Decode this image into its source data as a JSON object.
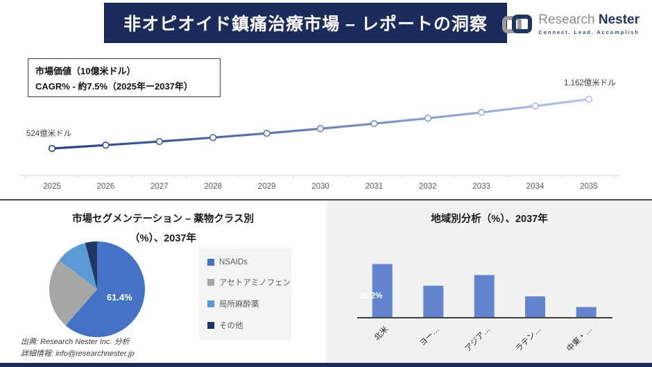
{
  "header": {
    "title": "非オピオイド鎮痛治療市場 – レポートの洞察",
    "logo": {
      "brand_gray": "Research",
      "brand_navy": "Nester",
      "tagline": "Connect. Lead. Accomplish"
    }
  },
  "info_box": {
    "line1": "市場価値（10億米ドル）",
    "line2": "CAGR% - 約7.5%（2025年ー2037年）"
  },
  "footer": {
    "line1": "出典: Research Nester Inc. 分析",
    "line2": "詳細情報: info@researchnester.jp"
  },
  "colors": {
    "banner_navy": "#1b2b5c",
    "line_gradient_start": "#24417e",
    "line_gradient_end": "#b9c5e6",
    "axis_gray": "#d9d9d9",
    "tick_text": "#595959"
  },
  "chart_data": [
    {
      "type": "line",
      "title": "市場価値（10億米ドル）",
      "x": [
        2025,
        2026,
        2027,
        2028,
        2029,
        2030,
        2031,
        2032,
        2033,
        2034,
        2035
      ],
      "values": [
        524,
        567,
        614,
        665,
        720,
        780,
        845,
        915,
        991,
        1073,
        1162
      ],
      "start_label": "524億米ドル",
      "end_label": "1,162億米ドル",
      "ylim": [
        450,
        1250
      ],
      "grid": false,
      "legend_position": "none"
    },
    {
      "type": "pie",
      "title_line1": "市場セグメンテーション – 薬物クラス別",
      "title_line2": "（%）、2037年",
      "labels": [
        "NSAIDs",
        "アセトアミノフェン",
        "局所麻酔薬",
        "その他"
      ],
      "values": [
        61.4,
        24.0,
        10.6,
        4.0
      ],
      "colors": [
        "#4472c4",
        "#a6a6a6",
        "#5b9bd5",
        "#1f3864"
      ],
      "shown_label": "61.4%",
      "legend_position": "right"
    },
    {
      "type": "bar",
      "title": "地域別分析（%）、2037年",
      "categories": [
        "北米",
        "ヨー…",
        "アジア…",
        "ラテン…",
        "中東・…"
      ],
      "values": [
        35.2,
        21,
        28,
        14,
        7
      ],
      "shown_label": "35.2%",
      "bar_color": "#6385cd",
      "ylim": [
        0,
        40
      ],
      "grid": false,
      "legend_position": "none"
    }
  ]
}
